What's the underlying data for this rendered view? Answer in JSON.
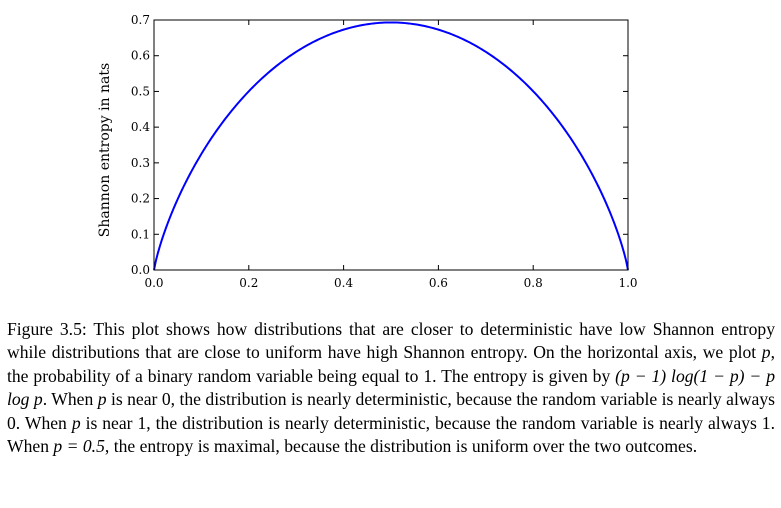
{
  "chart_data": {
    "type": "line",
    "title": "",
    "xlabel": "",
    "ylabel": "Shannon entropy in nats",
    "xlim": [
      0.0,
      1.0
    ],
    "ylim": [
      0.0,
      0.7
    ],
    "xticks": [
      0.0,
      0.2,
      0.4,
      0.6,
      0.8,
      1.0
    ],
    "xtick_labels": [
      "0.0",
      "0.2",
      "0.4",
      "0.6",
      "0.8",
      "1.0"
    ],
    "yticks": [
      0.0,
      0.1,
      0.2,
      0.3,
      0.4,
      0.5,
      0.6,
      0.7
    ],
    "ytick_labels": [
      "0.0",
      "0.1",
      "0.2",
      "0.3",
      "0.4",
      "0.5",
      "0.6",
      "0.7"
    ],
    "grid": false,
    "legend": "none",
    "series": [
      {
        "color": "#0000ff",
        "x": [
          0.0,
          0.01,
          0.05,
          0.1,
          0.15,
          0.2,
          0.25,
          0.3,
          0.35,
          0.4,
          0.45,
          0.5,
          0.55,
          0.6,
          0.65,
          0.7,
          0.75,
          0.8,
          0.85,
          0.9,
          0.95,
          0.99,
          1.0
        ],
        "y": [
          0.0,
          0.056,
          0.199,
          0.325,
          0.423,
          0.5,
          0.562,
          0.611,
          0.647,
          0.673,
          0.688,
          0.693,
          0.688,
          0.673,
          0.647,
          0.611,
          0.562,
          0.5,
          0.423,
          0.325,
          0.199,
          0.056,
          0.0
        ]
      }
    ]
  },
  "caption": {
    "lead": "Figure 3.5: This plot shows how distributions that are closer to deterministic have low Shannon entropy while distributions that are close to uniform have high Shannon entropy. On the horizontal axis, we plot ",
    "p1": "p",
    "t1": ", the probability of a binary random variable being equal to 1. The entropy is given by ",
    "formula": "(p − 1) log(1 − p) − p log p",
    "t2": ". When ",
    "p2": "p",
    "t3": " is near 0, the distribution is nearly deterministic, because the random variable is nearly always 0. When ",
    "p3": "p",
    "t4": " is near 1, the distribution is nearly deterministic, because the random variable is nearly always 1. When ",
    "p4": "p = 0.5",
    "t5": ", the entropy is maximal, because the distribution is uniform over the two outcomes."
  }
}
